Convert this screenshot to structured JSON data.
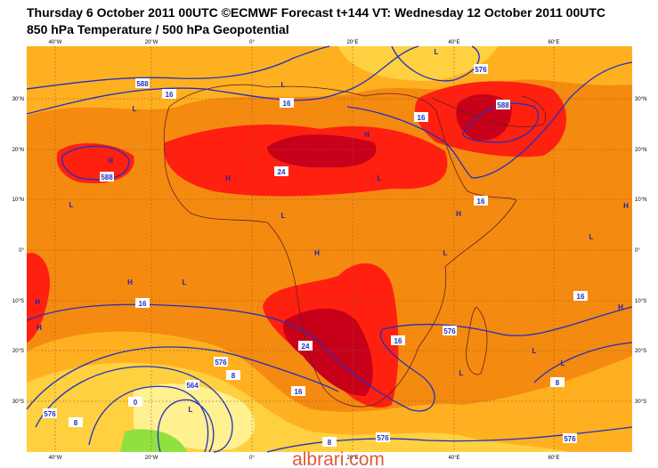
{
  "header": {
    "title": "Thursday 6 October 2011 00UTC ©ECMWF Forecast t+144 VT: Wednesday 12 October 2011 00UTC",
    "subtitle": "850 hPa Temperature / 500 hPa Geopotential"
  },
  "map": {
    "lon_labels": [
      "40°W",
      "20°W",
      "0°",
      "20°E",
      "40°E",
      "60°E"
    ],
    "lat_labels": [
      "30°N",
      "20°N",
      "10°N",
      "0°",
      "10°S",
      "20°S",
      "30°S"
    ],
    "contour_labels": [
      "16",
      "16",
      "588",
      "576",
      "16",
      "588",
      "24",
      "588",
      "16",
      "16",
      "16",
      "24",
      "16",
      "576",
      "576",
      "8",
      "564",
      "16",
      "0",
      "576",
      "8",
      "8",
      "8",
      "576",
      "576"
    ],
    "pressure_centers": [
      "L",
      "L",
      "L",
      "H",
      "H",
      "H",
      "L",
      "L",
      "H",
      "L",
      "H",
      "L",
      "H",
      "L",
      "H",
      "L",
      "H",
      "H",
      "H",
      "L",
      "L",
      "L",
      "L"
    ]
  },
  "watermark": "albrari.com"
}
